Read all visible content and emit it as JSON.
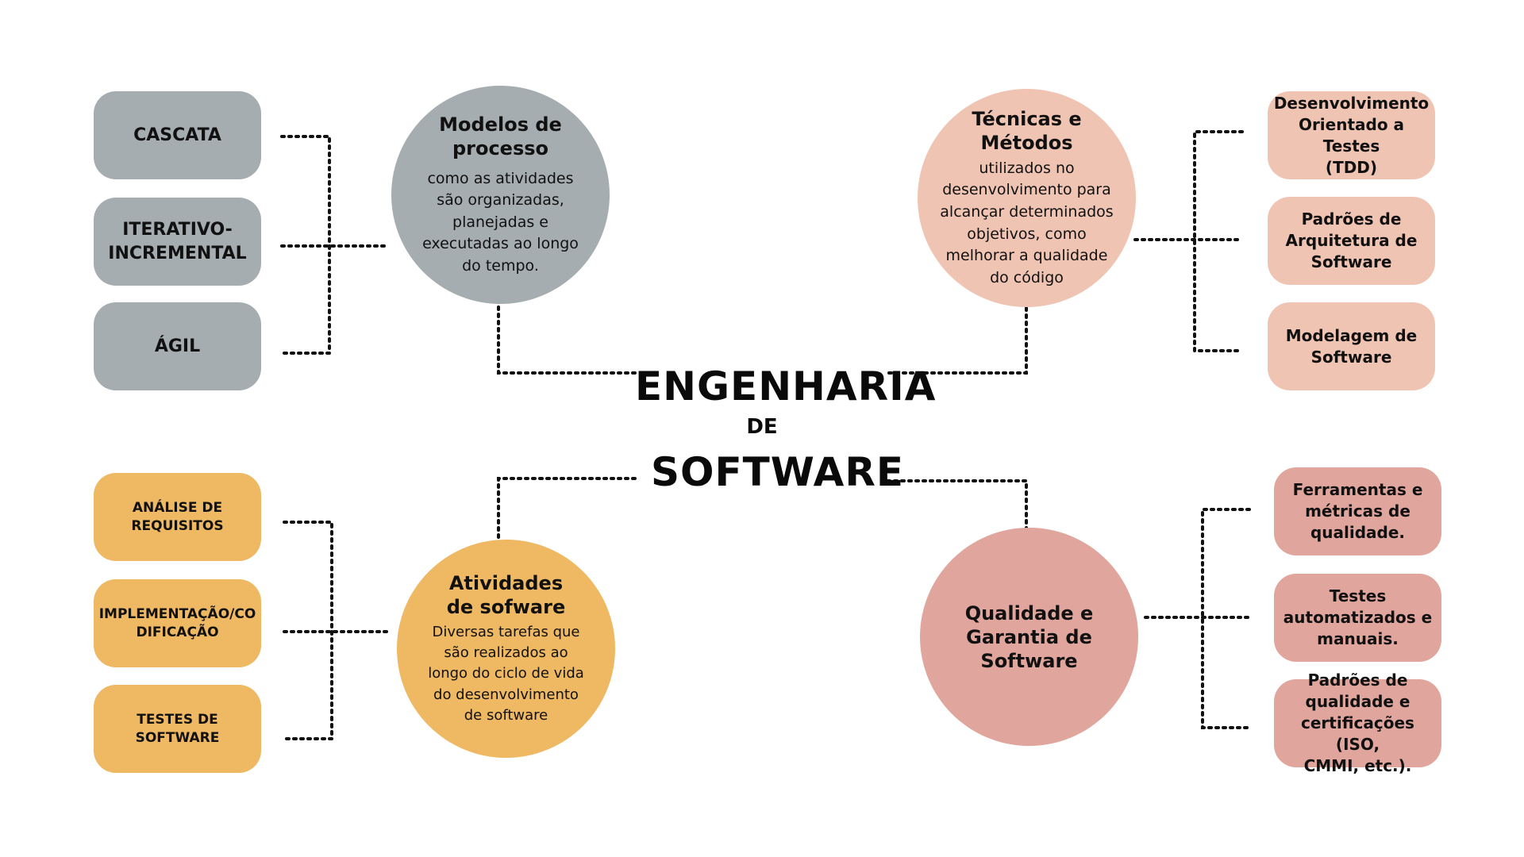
{
  "center": {
    "line1": "ENGENHARIA",
    "line2": "DE",
    "line3": "SOFTWARE"
  },
  "topics": {
    "process_models": {
      "title": "Modelos de\nprocesso",
      "description": "como as atividades\nsão organizadas,\nplanejadas e\nexecutadas ao longo\ndo tempo.",
      "color": "#a6adb0",
      "items": [
        "CASCATA",
        "ITERATIVO-\nINCREMENTAL",
        "ÁGIL"
      ]
    },
    "techniques": {
      "title": "Técnicas e\nMétodos",
      "description": "utilizados no\ndesenvolvimento  para\nalcançar determinados\nobjetivos, como\nmelhorar a qualidade\ndo código",
      "color": "#f0c4b3",
      "items": [
        "Desenvolvimento\nOrientado a Testes\n(TDD)",
        "Padrões de\nArquitetura de\nSoftware",
        "Modelagem de\nSoftware"
      ]
    },
    "activities": {
      "title": "Atividades\nde sofware",
      "description": "Diversas tarefas  que\nsão realizados ao\nlongo do ciclo de vida\ndo desenvolvimento\nde software",
      "color": "#efb863",
      "items": [
        "ANÁLISE DE\nREQUISITOS",
        "IMPLEMENTAÇÃO/CO\nDIFICAÇÃO",
        "TESTES DE SOFTWARE"
      ]
    },
    "quality": {
      "title": "Qualidade e\nGarantia de\nSoftware",
      "description": "",
      "color": "#e0a59c",
      "items": [
        "Ferramentas e\nmétricas de\nqualidade.",
        "Testes\nautomatizados e\nmanuais.",
        "Padrões de\nqualidade e\ncertificações (ISO,\nCMMI, etc.)."
      ]
    }
  }
}
